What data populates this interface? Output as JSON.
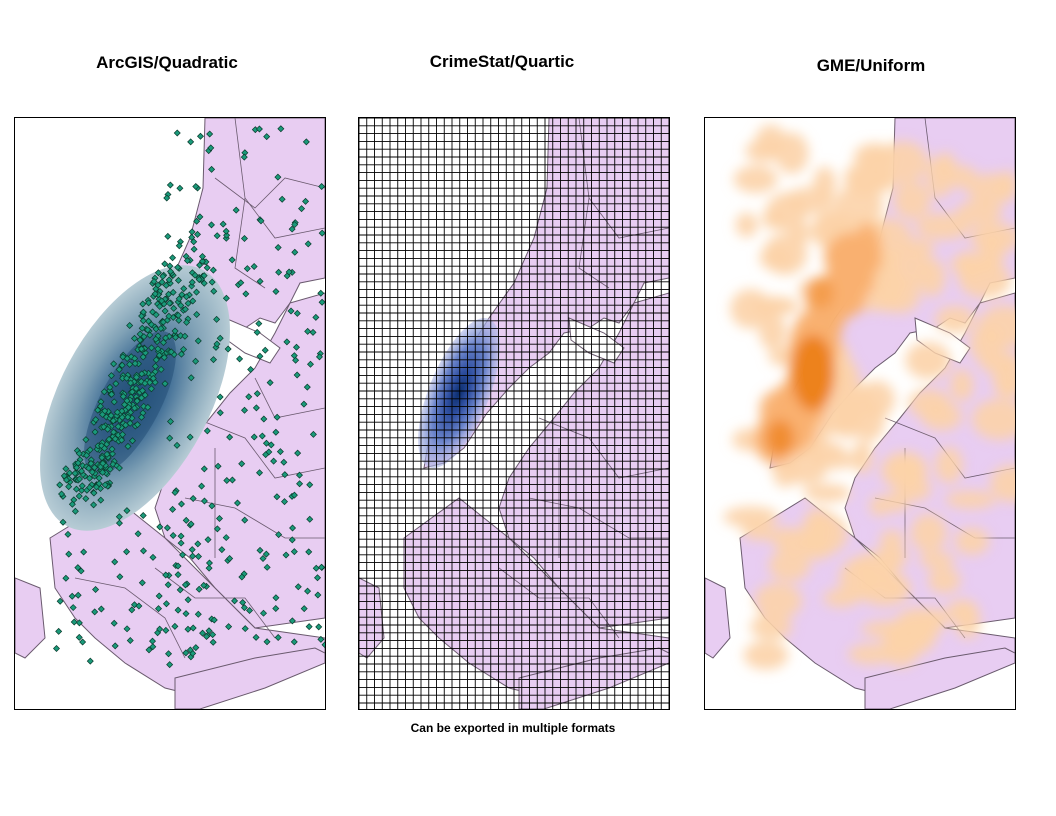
{
  "panels": [
    {
      "title": "ArcGIS/Quadratic",
      "kernel_color": "#2e5f8a",
      "point_color": "#1a9a7a"
    },
    {
      "title": "CrimeStat/Quartic",
      "kernel_color": "#0b2e6e",
      "grid_color": "#000000"
    },
    {
      "title": "GME/Uniform",
      "kernel_color": "#f08a1c"
    }
  ],
  "caption": "Can be exported in multiple formats",
  "colors": {
    "land": "#e8cdf2",
    "boundary": "#6a5a6e",
    "water": "#ffffff"
  }
}
